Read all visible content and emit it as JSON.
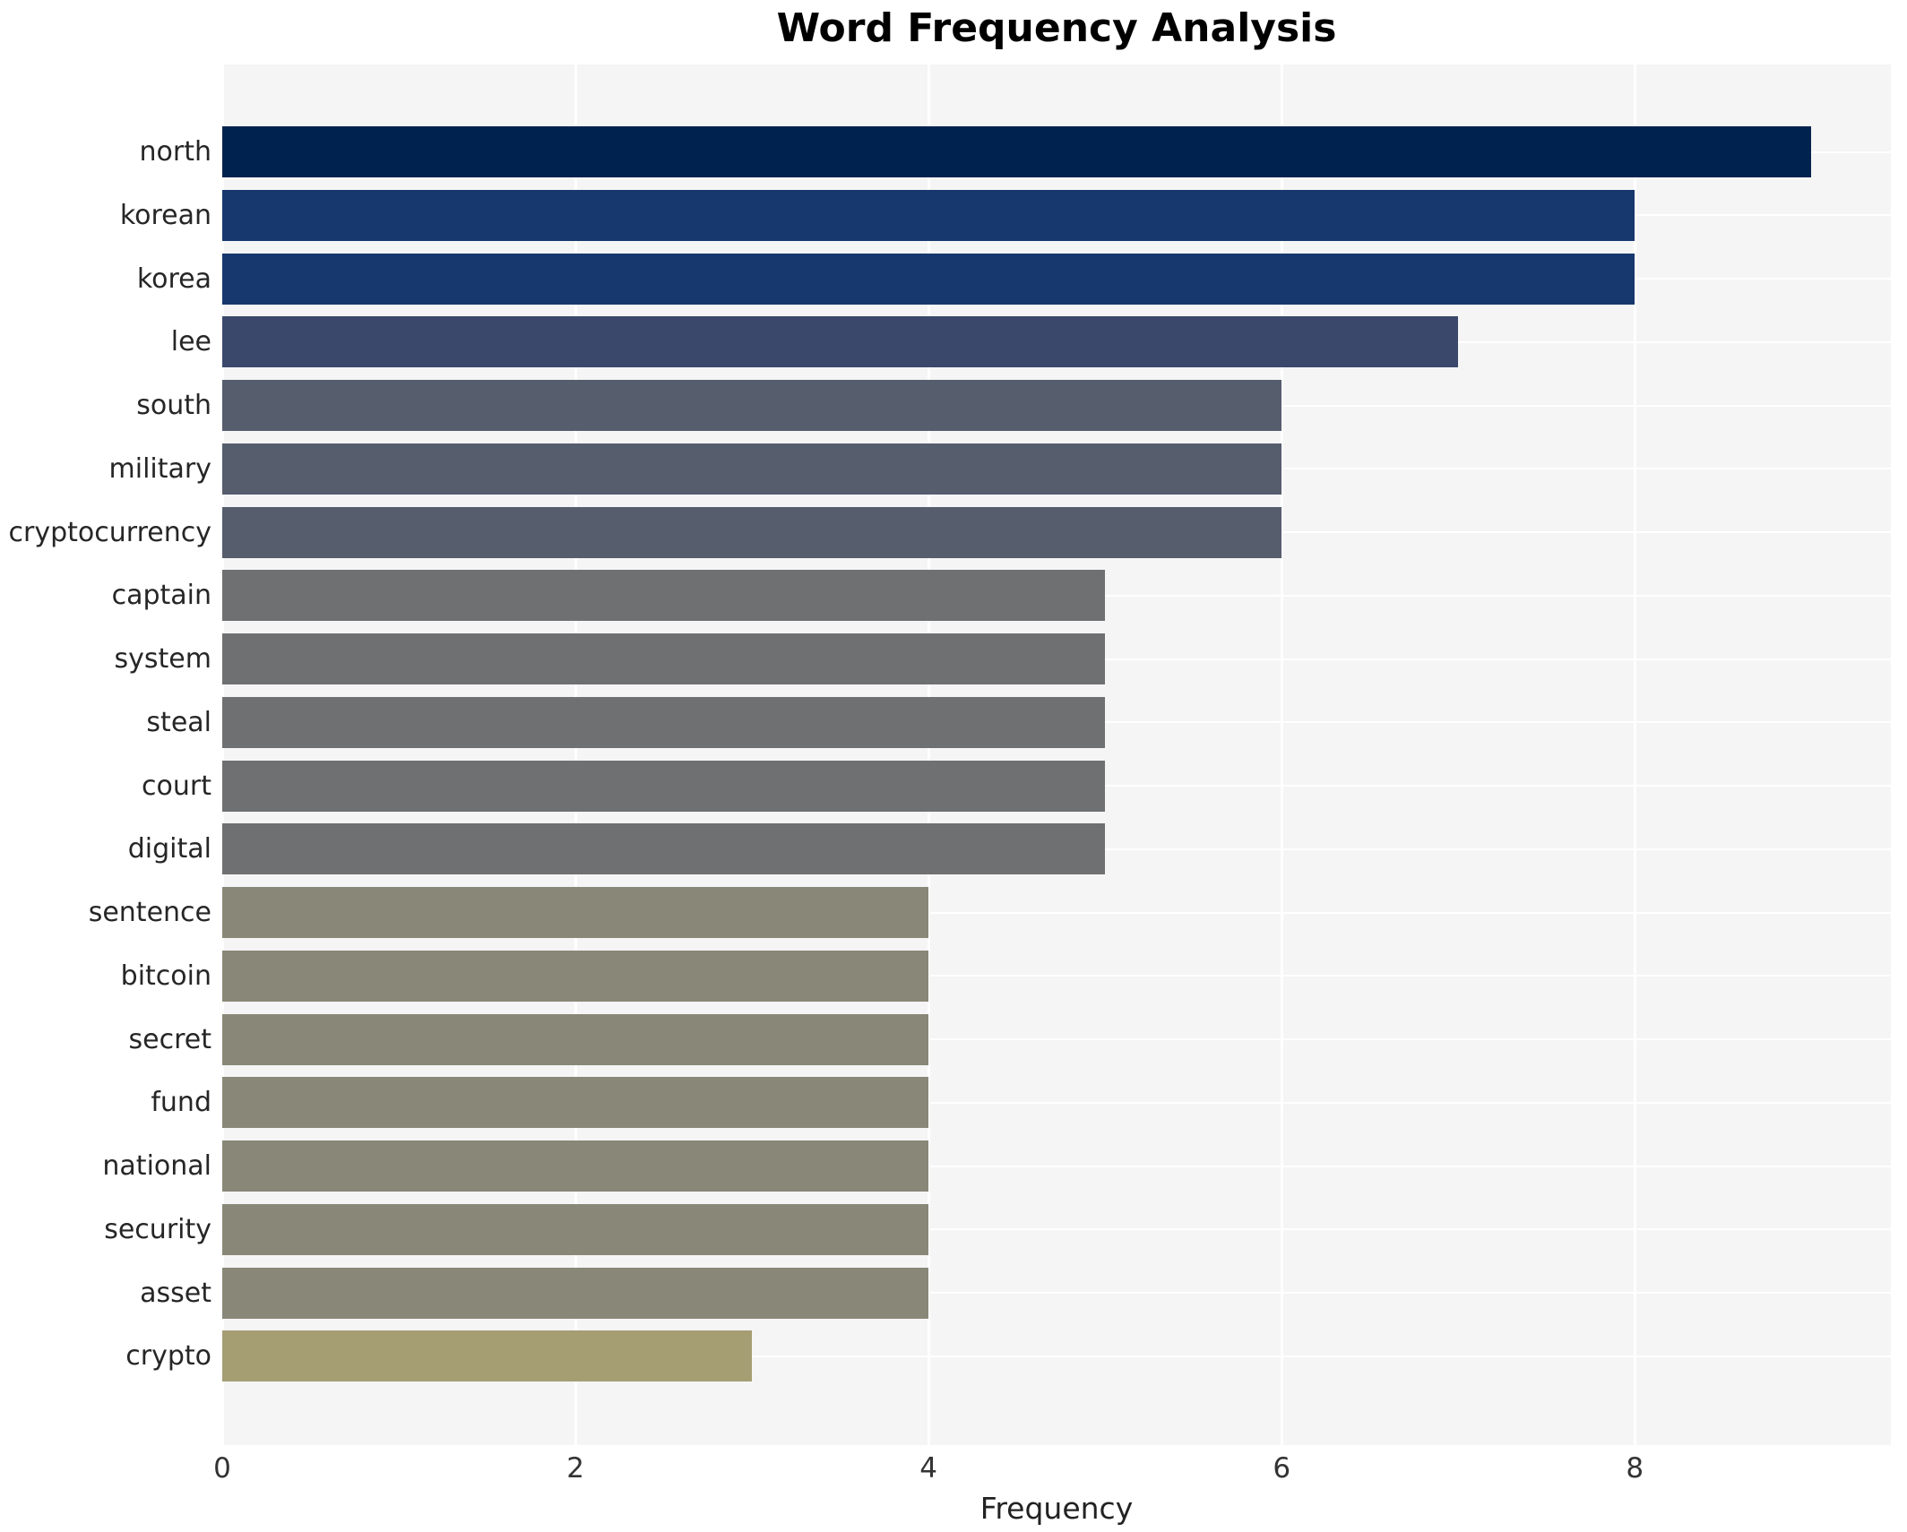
{
  "title": "Word Frequency Analysis",
  "chart_data": {
    "type": "bar",
    "orientation": "horizontal",
    "title": "Word Frequency Analysis",
    "xlabel": "Frequency",
    "ylabel": "",
    "xlim": [
      0,
      9.45
    ],
    "xticks": [
      "0",
      "2",
      "4",
      "6",
      "8"
    ],
    "xtick_values": [
      0,
      2,
      4,
      6,
      8
    ],
    "grid": true,
    "legend": false,
    "categories": [
      "north",
      "korean",
      "korea",
      "lee",
      "south",
      "military",
      "cryptocurrency",
      "captain",
      "system",
      "steal",
      "court",
      "digital",
      "sentence",
      "bitcoin",
      "secret",
      "fund",
      "national",
      "security",
      "asset",
      "crypto"
    ],
    "values": [
      9,
      8,
      8,
      7,
      6,
      6,
      6,
      5,
      5,
      5,
      5,
      5,
      4,
      4,
      4,
      4,
      4,
      4,
      4,
      3
    ],
    "bar_colors": [
      "#00224e",
      "#17386e",
      "#17386e",
      "#3a486c",
      "#565d6d",
      "#565d6d",
      "#565d6d",
      "#6e7071",
      "#6e7071",
      "#6e7071",
      "#6e7071",
      "#6e7071",
      "#898878",
      "#898878",
      "#898878",
      "#898878",
      "#898878",
      "#898878",
      "#898878",
      "#a59e73"
    ],
    "colors": {
      "plot_background": "#f5f5f6",
      "grid": "#ffffff",
      "title_text": "#000000",
      "tick_text": "#333333",
      "label_text": "#262626"
    }
  }
}
